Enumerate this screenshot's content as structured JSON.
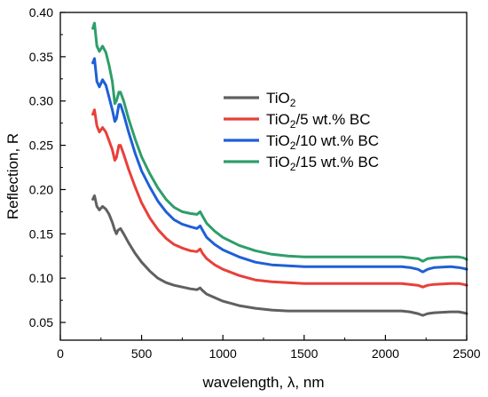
{
  "chart_data": {
    "type": "line",
    "title": "",
    "xlabel": "wavelength, λ, nm",
    "ylabel": "Reflection, R",
    "xlim": [
      0,
      2500
    ],
    "ylim": [
      0.03,
      0.4
    ],
    "xticks": [
      0,
      500,
      1000,
      1500,
      2000,
      2500
    ],
    "yticks": [
      0.05,
      0.1,
      0.15,
      0.2,
      0.25,
      0.3,
      0.35,
      0.4
    ],
    "grid": false,
    "legend_position": "upper-right",
    "series": [
      {
        "name": "TiO2",
        "legend_base": "TiO",
        "legend_sub": "2",
        "legend_rest": "",
        "color": "#606060",
        "points": [
          [
            200,
            0.189
          ],
          [
            210,
            0.193
          ],
          [
            225,
            0.181
          ],
          [
            240,
            0.177
          ],
          [
            260,
            0.181
          ],
          [
            280,
            0.178
          ],
          [
            300,
            0.172
          ],
          [
            320,
            0.163
          ],
          [
            335,
            0.154
          ],
          [
            345,
            0.15
          ],
          [
            355,
            0.154
          ],
          [
            370,
            0.156
          ],
          [
            390,
            0.15
          ],
          [
            420,
            0.14
          ],
          [
            460,
            0.128
          ],
          [
            500,
            0.118
          ],
          [
            550,
            0.108
          ],
          [
            600,
            0.1
          ],
          [
            650,
            0.095
          ],
          [
            700,
            0.092
          ],
          [
            750,
            0.09
          ],
          [
            800,
            0.088
          ],
          [
            840,
            0.087
          ],
          [
            860,
            0.089
          ],
          [
            875,
            0.086
          ],
          [
            900,
            0.082
          ],
          [
            950,
            0.078
          ],
          [
            1000,
            0.074
          ],
          [
            1100,
            0.069
          ],
          [
            1200,
            0.066
          ],
          [
            1300,
            0.064
          ],
          [
            1400,
            0.063
          ],
          [
            1500,
            0.063
          ],
          [
            1600,
            0.063
          ],
          [
            1800,
            0.063
          ],
          [
            2000,
            0.063
          ],
          [
            2100,
            0.063
          ],
          [
            2150,
            0.062
          ],
          [
            2200,
            0.06
          ],
          [
            2230,
            0.058
          ],
          [
            2260,
            0.06
          ],
          [
            2300,
            0.061
          ],
          [
            2400,
            0.062
          ],
          [
            2450,
            0.062
          ],
          [
            2480,
            0.061
          ],
          [
            2500,
            0.06
          ]
        ]
      },
      {
        "name": "TiO2/5 wt.% BC",
        "legend_base": "TiO",
        "legend_sub": "2",
        "legend_rest": "/5 wt.% BC",
        "color": "#e8403a",
        "points": [
          [
            200,
            0.285
          ],
          [
            210,
            0.29
          ],
          [
            225,
            0.272
          ],
          [
            240,
            0.265
          ],
          [
            260,
            0.27
          ],
          [
            280,
            0.265
          ],
          [
            300,
            0.255
          ],
          [
            320,
            0.245
          ],
          [
            335,
            0.233
          ],
          [
            345,
            0.236
          ],
          [
            360,
            0.25
          ],
          [
            370,
            0.25
          ],
          [
            390,
            0.24
          ],
          [
            420,
            0.223
          ],
          [
            460,
            0.203
          ],
          [
            500,
            0.185
          ],
          [
            550,
            0.168
          ],
          [
            600,
            0.155
          ],
          [
            650,
            0.145
          ],
          [
            700,
            0.138
          ],
          [
            750,
            0.134
          ],
          [
            800,
            0.131
          ],
          [
            840,
            0.13
          ],
          [
            860,
            0.133
          ],
          [
            875,
            0.128
          ],
          [
            900,
            0.122
          ],
          [
            950,
            0.115
          ],
          [
            1000,
            0.11
          ],
          [
            1100,
            0.103
          ],
          [
            1200,
            0.098
          ],
          [
            1300,
            0.096
          ],
          [
            1400,
            0.095
          ],
          [
            1500,
            0.094
          ],
          [
            1600,
            0.094
          ],
          [
            1800,
            0.094
          ],
          [
            2000,
            0.094
          ],
          [
            2100,
            0.094
          ],
          [
            2150,
            0.093
          ],
          [
            2200,
            0.092
          ],
          [
            2230,
            0.09
          ],
          [
            2260,
            0.092
          ],
          [
            2300,
            0.093
          ],
          [
            2400,
            0.094
          ],
          [
            2450,
            0.094
          ],
          [
            2480,
            0.093
          ],
          [
            2500,
            0.092
          ]
        ]
      },
      {
        "name": "TiO2/10 wt.% BC",
        "legend_base": "TiO",
        "legend_sub": "2",
        "legend_rest": "/10 wt.% BC",
        "color": "#1f5fd6",
        "points": [
          [
            200,
            0.343
          ],
          [
            210,
            0.348
          ],
          [
            225,
            0.322
          ],
          [
            240,
            0.316
          ],
          [
            260,
            0.324
          ],
          [
            280,
            0.318
          ],
          [
            300,
            0.304
          ],
          [
            320,
            0.29
          ],
          [
            335,
            0.277
          ],
          [
            345,
            0.28
          ],
          [
            360,
            0.296
          ],
          [
            370,
            0.296
          ],
          [
            390,
            0.285
          ],
          [
            420,
            0.265
          ],
          [
            460,
            0.241
          ],
          [
            500,
            0.221
          ],
          [
            550,
            0.203
          ],
          [
            600,
            0.187
          ],
          [
            650,
            0.175
          ],
          [
            700,
            0.166
          ],
          [
            750,
            0.161
          ],
          [
            800,
            0.158
          ],
          [
            840,
            0.156
          ],
          [
            860,
            0.159
          ],
          [
            875,
            0.154
          ],
          [
            900,
            0.146
          ],
          [
            950,
            0.138
          ],
          [
            1000,
            0.132
          ],
          [
            1100,
            0.124
          ],
          [
            1200,
            0.118
          ],
          [
            1300,
            0.115
          ],
          [
            1400,
            0.114
          ],
          [
            1500,
            0.113
          ],
          [
            1600,
            0.113
          ],
          [
            1800,
            0.113
          ],
          [
            2000,
            0.113
          ],
          [
            2100,
            0.113
          ],
          [
            2150,
            0.112
          ],
          [
            2200,
            0.11
          ],
          [
            2230,
            0.107
          ],
          [
            2260,
            0.11
          ],
          [
            2300,
            0.112
          ],
          [
            2400,
            0.113
          ],
          [
            2450,
            0.112
          ],
          [
            2480,
            0.111
          ],
          [
            2500,
            0.11
          ]
        ]
      },
      {
        "name": "TiO2/15 wt.% BC",
        "legend_base": "TiO",
        "legend_sub": "2",
        "legend_rest": "/15 wt.% BC",
        "color": "#2e9e6a",
        "points": [
          [
            200,
            0.382
          ],
          [
            210,
            0.388
          ],
          [
            225,
            0.362
          ],
          [
            240,
            0.356
          ],
          [
            260,
            0.362
          ],
          [
            280,
            0.355
          ],
          [
            300,
            0.34
          ],
          [
            320,
            0.322
          ],
          [
            335,
            0.297
          ],
          [
            345,
            0.3
          ],
          [
            360,
            0.31
          ],
          [
            370,
            0.31
          ],
          [
            390,
            0.3
          ],
          [
            420,
            0.28
          ],
          [
            460,
            0.257
          ],
          [
            500,
            0.237
          ],
          [
            550,
            0.218
          ],
          [
            600,
            0.202
          ],
          [
            650,
            0.189
          ],
          [
            700,
            0.18
          ],
          [
            750,
            0.175
          ],
          [
            800,
            0.173
          ],
          [
            840,
            0.172
          ],
          [
            860,
            0.175
          ],
          [
            875,
            0.17
          ],
          [
            900,
            0.162
          ],
          [
            950,
            0.153
          ],
          [
            1000,
            0.146
          ],
          [
            1100,
            0.137
          ],
          [
            1200,
            0.131
          ],
          [
            1300,
            0.127
          ],
          [
            1400,
            0.125
          ],
          [
            1500,
            0.124
          ],
          [
            1600,
            0.124
          ],
          [
            1800,
            0.124
          ],
          [
            2000,
            0.124
          ],
          [
            2100,
            0.124
          ],
          [
            2150,
            0.123
          ],
          [
            2200,
            0.122
          ],
          [
            2230,
            0.119
          ],
          [
            2260,
            0.122
          ],
          [
            2300,
            0.123
          ],
          [
            2400,
            0.124
          ],
          [
            2450,
            0.124
          ],
          [
            2480,
            0.123
          ],
          [
            2500,
            0.121
          ]
        ]
      }
    ]
  }
}
